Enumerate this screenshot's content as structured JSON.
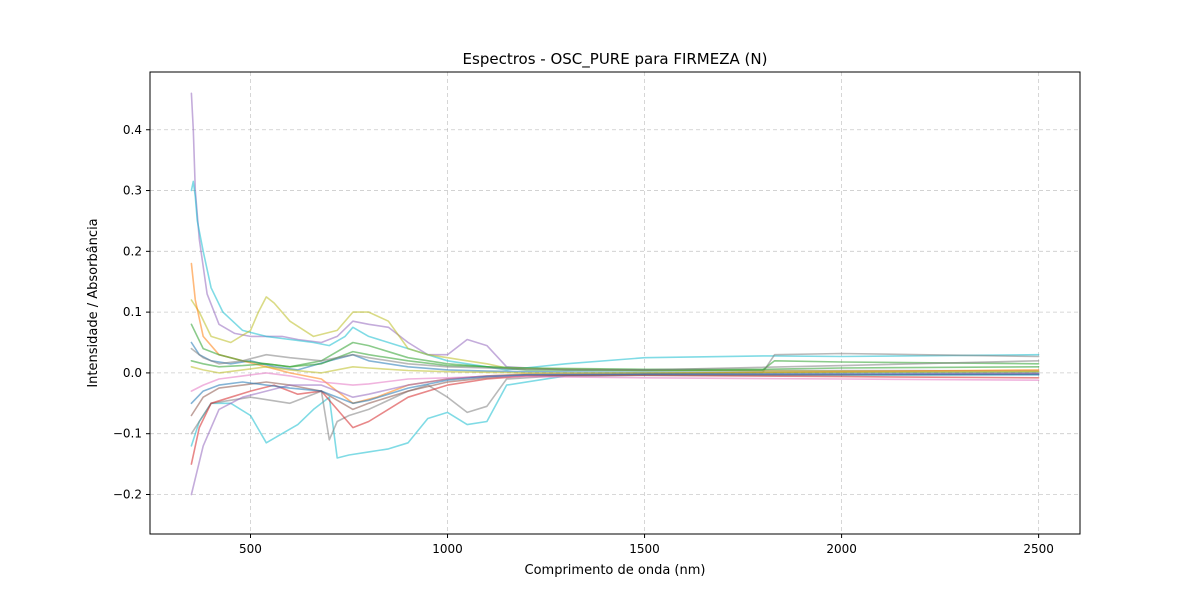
{
  "chart_data": {
    "type": "line",
    "title": "Espectros - OSC_PURE para FIRMEZA (N)",
    "xlabel": "Comprimento de onda (nm)",
    "ylabel": "Intensidade / Absorbância",
    "xlim": [
      245,
      2605
    ],
    "ylim": [
      -0.265,
      0.495
    ],
    "xticks": [
      500,
      1000,
      1500,
      2000,
      2500
    ],
    "yticks": [
      -0.2,
      -0.1,
      0.0,
      0.1,
      0.2,
      0.3,
      0.4
    ],
    "xtick_labels": [
      "500",
      "1000",
      "1500",
      "2000",
      "2500"
    ],
    "ytick_labels": [
      "−0.2",
      "−0.1",
      "0.0",
      "0.1",
      "0.2",
      "0.3",
      "0.4"
    ],
    "grid": true,
    "legend": "none",
    "series_note": "approximately 200 overlaid spectra; representative series shown",
    "series": [
      {
        "color": "#9467bd",
        "x": [
          350,
          355,
          360,
          370,
          390,
          420,
          460,
          500,
          540,
          580,
          620,
          680,
          720,
          760,
          800,
          850,
          900,
          950,
          1000,
          1050,
          1100,
          1150,
          1300,
          1500,
          1800,
          2000,
          2200,
          2500
        ],
        "y": [
          0.46,
          0.4,
          0.3,
          0.22,
          0.13,
          0.08,
          0.065,
          0.06,
          0.06,
          0.06,
          0.055,
          0.05,
          0.06,
          0.085,
          0.08,
          0.075,
          0.05,
          0.03,
          0.03,
          0.055,
          0.045,
          0.01,
          0.005,
          0.005,
          0.004,
          0.004,
          0.004,
          0.003
        ]
      },
      {
        "color": "#17becf",
        "x": [
          350,
          355,
          360,
          365,
          380,
          400,
          430,
          480,
          540,
          600,
          660,
          700,
          740,
          760,
          800,
          850,
          900,
          950,
          1000,
          1050,
          1100,
          1150,
          1300,
          1500,
          1800,
          1830,
          2000,
          2500
        ],
        "y": [
          0.3,
          0.315,
          0.29,
          0.25,
          0.2,
          0.14,
          0.1,
          0.07,
          0.06,
          0.055,
          0.05,
          0.045,
          0.06,
          0.075,
          0.06,
          0.05,
          0.04,
          0.03,
          0.02,
          0.015,
          0.01,
          0.005,
          0.015,
          0.025,
          0.028,
          0.028,
          0.027,
          0.03
        ]
      },
      {
        "color": "#17becf",
        "x": [
          350,
          370,
          400,
          450,
          500,
          540,
          580,
          620,
          660,
          700,
          720,
          750,
          800,
          850,
          900,
          950,
          1000,
          1050,
          1100,
          1150,
          1300,
          1500,
          2000,
          2500
        ],
        "y": [
          -0.12,
          -0.08,
          -0.05,
          -0.05,
          -0.07,
          -0.115,
          -0.1,
          -0.085,
          -0.06,
          -0.04,
          -0.14,
          -0.135,
          -0.13,
          -0.125,
          -0.115,
          -0.075,
          -0.065,
          -0.085,
          -0.08,
          -0.02,
          -0.005,
          -0.004,
          -0.004,
          -0.003
        ]
      },
      {
        "color": "#7f7f7f",
        "x": [
          350,
          400,
          500,
          600,
          680,
          700,
          720,
          750,
          800,
          900,
          950,
          1000,
          1050,
          1100,
          1150,
          1300,
          1500,
          1800,
          1830,
          2000,
          2500
        ],
        "y": [
          -0.1,
          -0.05,
          -0.04,
          -0.05,
          -0.03,
          -0.11,
          -0.08,
          -0.07,
          -0.06,
          -0.03,
          -0.02,
          -0.04,
          -0.065,
          -0.055,
          -0.01,
          -0.004,
          -0.002,
          0.001,
          0.03,
          0.032,
          0.027
        ]
      },
      {
        "color": "#bcbd22",
        "x": [
          350,
          370,
          400,
          450,
          500,
          520,
          540,
          560,
          600,
          660,
          720,
          760,
          800,
          850,
          900,
          950,
          1000,
          1050,
          1100,
          1150,
          1500,
          2500
        ],
        "y": [
          0.12,
          0.1,
          0.06,
          0.05,
          0.07,
          0.1,
          0.125,
          0.115,
          0.085,
          0.06,
          0.07,
          0.1,
          0.1,
          0.085,
          0.04,
          0.03,
          0.025,
          0.02,
          0.015,
          0.008,
          0.004,
          0.003
        ]
      },
      {
        "color": "#d62728",
        "x": [
          350,
          370,
          400,
          450,
          500,
          560,
          620,
          680,
          720,
          760,
          800,
          900,
          1000,
          1100,
          1200,
          1500,
          2000,
          2500
        ],
        "y": [
          -0.15,
          -0.09,
          -0.05,
          -0.04,
          -0.03,
          -0.02,
          -0.035,
          -0.03,
          -0.06,
          -0.09,
          -0.08,
          -0.04,
          -0.02,
          -0.01,
          -0.005,
          -0.004,
          -0.006,
          -0.008
        ]
      },
      {
        "color": "#1f77b4",
        "x": [
          350,
          370,
          400,
          450,
          500,
          560,
          620,
          700,
          760,
          800,
          900,
          1000,
          1100,
          1200,
          1500,
          2000,
          2500
        ],
        "y": [
          0.05,
          0.03,
          0.02,
          0.015,
          0.02,
          0.01,
          0.005,
          0.02,
          0.03,
          0.02,
          0.01,
          0.005,
          0.003,
          0.002,
          0.001,
          0.001,
          0.0
        ]
      },
      {
        "color": "#ff7f0e",
        "x": [
          350,
          360,
          380,
          420,
          480,
          540,
          600,
          680,
          760,
          820,
          900,
          1000,
          1100,
          1200,
          1500,
          2000,
          2500
        ],
        "y": [
          0.18,
          0.12,
          0.06,
          0.03,
          0.02,
          0.01,
          0.0,
          -0.01,
          -0.05,
          -0.04,
          -0.02,
          -0.01,
          -0.005,
          -0.002,
          -0.001,
          0.002,
          0.005
        ]
      },
      {
        "color": "#2ca02c",
        "x": [
          350,
          380,
          420,
          480,
          540,
          600,
          680,
          760,
          800,
          900,
          1000,
          1100,
          1200,
          1500,
          1800,
          1830,
          2000,
          2500
        ],
        "y": [
          0.08,
          0.04,
          0.03,
          0.02,
          0.015,
          0.01,
          0.02,
          0.05,
          0.045,
          0.025,
          0.015,
          0.01,
          0.005,
          0.004,
          0.005,
          0.02,
          0.018,
          0.015
        ]
      },
      {
        "color": "#8c564b",
        "x": [
          350,
          380,
          420,
          480,
          540,
          600,
          680,
          760,
          800,
          900,
          1000,
          1100,
          1200,
          1500,
          2000,
          2500
        ],
        "y": [
          -0.07,
          -0.04,
          -0.025,
          -0.02,
          -0.015,
          -0.02,
          -0.03,
          -0.06,
          -0.05,
          -0.03,
          -0.015,
          -0.008,
          -0.004,
          -0.003,
          -0.003,
          -0.002
        ]
      },
      {
        "color": "#e377c2",
        "x": [
          350,
          380,
          420,
          480,
          540,
          600,
          680,
          760,
          800,
          900,
          1000,
          1100,
          1200,
          1500,
          2000,
          2500
        ],
        "y": [
          -0.03,
          -0.02,
          -0.01,
          -0.005,
          0.0,
          -0.005,
          -0.015,
          -0.02,
          -0.018,
          -0.01,
          -0.008,
          -0.006,
          -0.006,
          -0.008,
          -0.01,
          -0.012
        ]
      },
      {
        "color": "#2ca02c",
        "x": [
          350,
          380,
          420,
          480,
          540,
          600,
          680,
          760,
          800,
          900,
          1000,
          1100,
          1200,
          1500,
          1800,
          2000,
          2500
        ],
        "y": [
          0.02,
          0.015,
          0.01,
          0.012,
          0.015,
          0.01,
          0.015,
          0.035,
          0.03,
          0.02,
          0.012,
          0.01,
          0.008,
          0.006,
          0.006,
          0.008,
          0.01
        ]
      },
      {
        "color": "#9467bd",
        "x": [
          350,
          380,
          420,
          480,
          540,
          600,
          680,
          760,
          800,
          900,
          1000,
          1100,
          1200,
          1500,
          2000,
          2500
        ],
        "y": [
          -0.2,
          -0.12,
          -0.06,
          -0.04,
          -0.03,
          -0.02,
          -0.02,
          -0.04,
          -0.035,
          -0.02,
          -0.01,
          -0.005,
          -0.003,
          -0.002,
          -0.002,
          -0.001
        ]
      },
      {
        "color": "#bcbd22",
        "x": [
          350,
          380,
          420,
          480,
          540,
          600,
          680,
          760,
          800,
          900,
          1000,
          1100,
          1200,
          1500,
          2000,
          2500
        ],
        "y": [
          0.01,
          0.005,
          0.0,
          0.005,
          0.01,
          0.005,
          0.0,
          0.01,
          0.008,
          0.004,
          0.002,
          0.001,
          0.0,
          0.0,
          0.001,
          0.002
        ]
      },
      {
        "color": "#7f7f7f",
        "x": [
          350,
          380,
          420,
          480,
          540,
          600,
          680,
          760,
          800,
          900,
          1000,
          1100,
          1200,
          1500,
          2000,
          2500
        ],
        "y": [
          0.04,
          0.025,
          0.015,
          0.02,
          0.03,
          0.025,
          0.02,
          0.03,
          0.025,
          0.015,
          0.01,
          0.008,
          0.006,
          0.005,
          0.012,
          0.02
        ]
      },
      {
        "color": "#1f77b4",
        "x": [
          350,
          380,
          420,
          480,
          540,
          600,
          680,
          760,
          800,
          900,
          1000,
          1100,
          1200,
          1500,
          2000,
          2500
        ],
        "y": [
          -0.05,
          -0.03,
          -0.02,
          -0.015,
          -0.02,
          -0.025,
          -0.03,
          -0.05,
          -0.045,
          -0.025,
          -0.012,
          -0.006,
          -0.003,
          -0.002,
          -0.002,
          -0.003
        ]
      }
    ]
  }
}
